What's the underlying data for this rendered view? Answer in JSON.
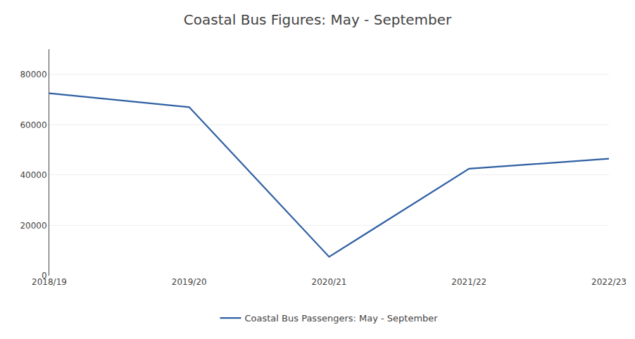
{
  "chart_data": {
    "type": "line",
    "title": "Coastal Bus Figures: May - September",
    "categories": [
      "2018/19",
      "2019/20",
      "2020/21",
      "2021/22",
      "2022/23"
    ],
    "series": [
      {
        "name": "Coastal Bus Passengers: May - September",
        "color": "#2E5FA3",
        "values": [
          72500,
          67000,
          7500,
          42500,
          46500
        ]
      }
    ],
    "ylim": [
      0,
      90000
    ],
    "yticks": [
      0,
      20000,
      40000,
      60000,
      80000
    ],
    "grid": true,
    "legend": "bottom"
  }
}
